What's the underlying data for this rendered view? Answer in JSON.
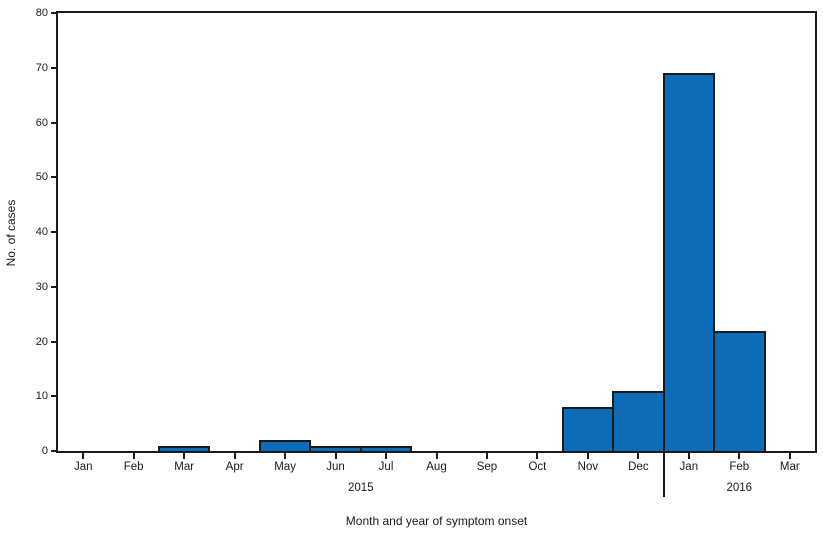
{
  "chart_data": {
    "type": "bar",
    "title": "",
    "xlabel": "Month and year of symptom onset",
    "ylabel": "No. of cases",
    "ylim": [
      0,
      80
    ],
    "ytick_step": 10,
    "yticks": [
      0,
      10,
      20,
      30,
      40,
      50,
      60,
      70,
      80
    ],
    "categories": [
      "Jan",
      "Feb",
      "Mar",
      "Apr",
      "May",
      "Jun",
      "Jul",
      "Aug",
      "Sep",
      "Oct",
      "Nov",
      "Dec",
      "Jan",
      "Feb",
      "Mar"
    ],
    "values": [
      0,
      0,
      1,
      0,
      2,
      1,
      1,
      0,
      0,
      0,
      8,
      11,
      69,
      22,
      0
    ],
    "year_groups": [
      {
        "label": "2015",
        "start_index": 0,
        "end_index": 11
      },
      {
        "label": "2016",
        "start_index": 12,
        "end_index": 14
      }
    ],
    "separator_after_index": 11,
    "grid": false,
    "legend_position": "none",
    "colors": {
      "bar_fill": "#0d6cb7",
      "bar_border": "#1a1a1a",
      "axis": "#1a1a1a",
      "text": "#1a1a1a"
    }
  }
}
